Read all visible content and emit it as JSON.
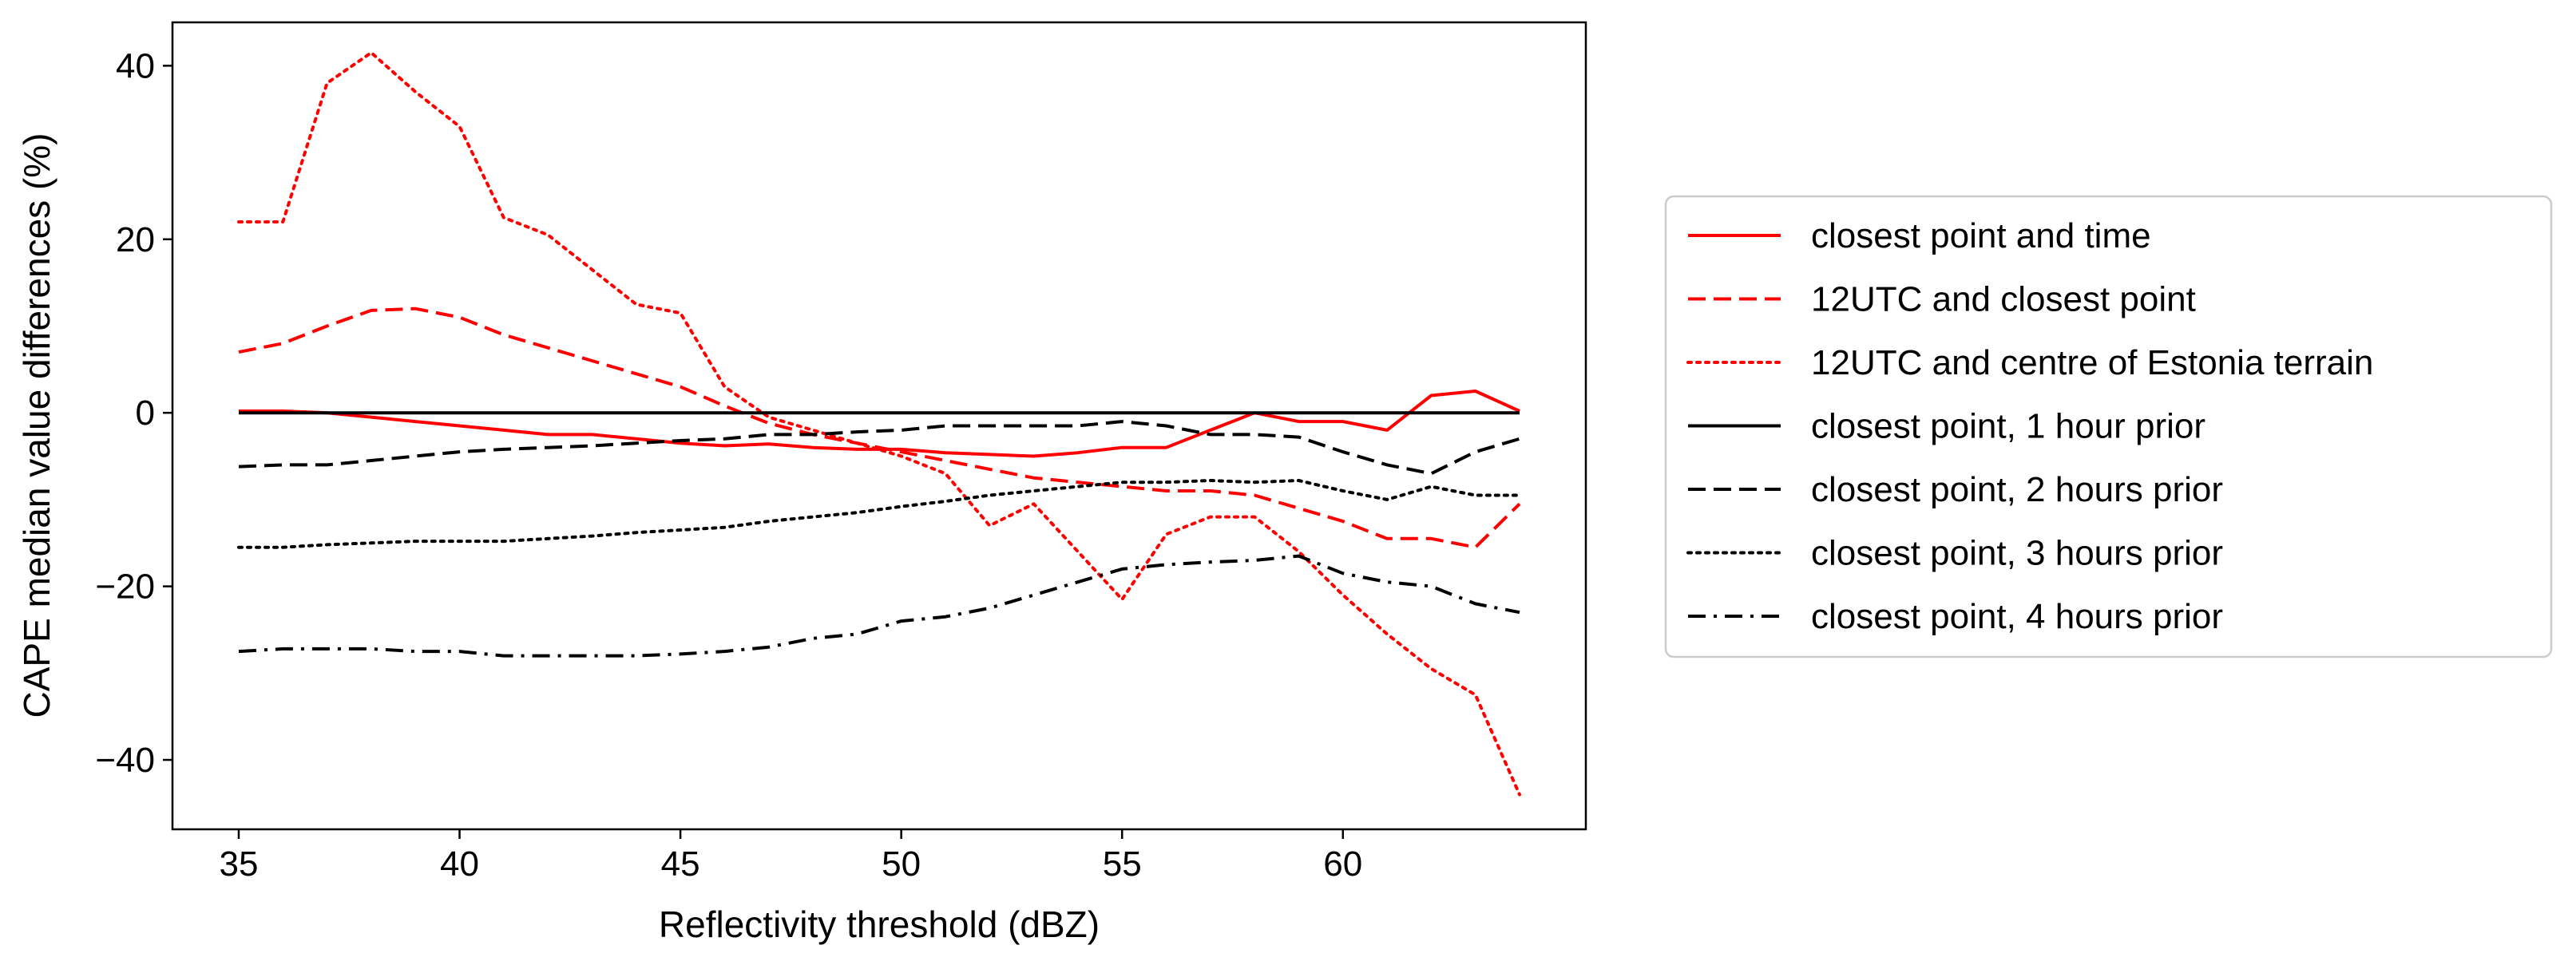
{
  "chart_data": {
    "type": "line",
    "title": "",
    "xlabel": "Reflectivity threshold (dBZ)",
    "ylabel": "CAPE median value differences (%)",
    "xlim": [
      33.5,
      65.5
    ],
    "ylim": [
      -48,
      45
    ],
    "xticks": [
      35,
      40,
      45,
      50,
      55,
      60
    ],
    "yticks": [
      -40,
      -20,
      0,
      20,
      40
    ],
    "ytick_labels": [
      "−40",
      "−20",
      "0",
      "20",
      "40"
    ],
    "grid": false,
    "legend_position": "right",
    "x": [
      35,
      36,
      37,
      38,
      39,
      40,
      41,
      42,
      43,
      44,
      45,
      46,
      47,
      48,
      49,
      50,
      51,
      52,
      53,
      54,
      55,
      56,
      57,
      58,
      59,
      60,
      61,
      62,
      63,
      64
    ],
    "series": [
      {
        "name": "closest point and time",
        "color": "#ff0000",
        "style": "solid",
        "values": [
          0.2,
          0.2,
          0,
          -0.5,
          -1,
          -1.5,
          -2,
          -2.5,
          -2.5,
          -3,
          -3.5,
          -3.8,
          -3.6,
          -4,
          -4.2,
          -4.2,
          -4.6,
          -4.8,
          -5,
          -4.6,
          -4,
          -4,
          -2,
          0,
          -1,
          -1,
          -2,
          2,
          2.5,
          0.2
        ]
      },
      {
        "name": "12UTC and closest point",
        "color": "#ff0000",
        "style": "dashed",
        "values": [
          7,
          8,
          10,
          11.8,
          12,
          11,
          9,
          7.5,
          6,
          4.5,
          3,
          0.8,
          -1.2,
          -2.5,
          -3.5,
          -4.5,
          -5.5,
          -6.5,
          -7.5,
          -8,
          -8.5,
          -9,
          -9,
          -9.5,
          -11,
          -12.5,
          -14.5,
          -14.5,
          -15.5,
          -10.5
        ]
      },
      {
        "name": "12UTC and centre of Estonia terrain",
        "color": "#ff0000",
        "style": "dotted",
        "values": [
          22,
          22,
          38,
          41.5,
          37,
          33,
          22.5,
          20.5,
          16.5,
          12.5,
          11.5,
          3,
          -0.5,
          -2,
          -3.5,
          -5,
          -7,
          -13,
          -10.5,
          -16,
          -21.5,
          -14,
          -12,
          -12,
          -16,
          -21,
          -25.5,
          -29.5,
          -32.5,
          -44
        ]
      },
      {
        "name": "closest point, 1 hour prior",
        "color": "#000000",
        "style": "solid",
        "values": [
          0,
          0,
          0,
          0,
          0,
          0,
          0,
          0,
          0,
          0,
          0,
          0,
          0,
          0,
          0,
          0,
          0,
          0,
          0,
          0,
          0,
          0,
          0,
          0,
          0,
          0,
          0,
          0,
          0,
          0
        ]
      },
      {
        "name": "closest point, 2 hours prior",
        "color": "#000000",
        "style": "dashed",
        "values": [
          -6.2,
          -6,
          -6,
          -5.5,
          -5,
          -4.5,
          -4.2,
          -4,
          -3.8,
          -3.5,
          -3.2,
          -3,
          -2.5,
          -2.5,
          -2.2,
          -2,
          -1.5,
          -1.5,
          -1.5,
          -1.5,
          -1,
          -1.5,
          -2.5,
          -2.5,
          -2.8,
          -4.5,
          -6,
          -7,
          -4.5,
          -3
        ]
      },
      {
        "name": "closest point, 3 hours prior",
        "color": "#000000",
        "style": "dotted",
        "values": [
          -15.5,
          -15.5,
          -15.2,
          -15,
          -14.8,
          -14.8,
          -14.8,
          -14.5,
          -14.2,
          -13.8,
          -13.5,
          -13.2,
          -12.5,
          -12,
          -11.5,
          -10.8,
          -10.2,
          -9.5,
          -9,
          -8.5,
          -8,
          -8,
          -7.8,
          -8,
          -7.8,
          -9,
          -10,
          -8.5,
          -9.5,
          -9.5
        ]
      },
      {
        "name": "closest point, 4 hours prior",
        "color": "#000000",
        "style": "dashdot",
        "values": [
          -27.5,
          -27.2,
          -27.2,
          -27.2,
          -27.5,
          -27.5,
          -28,
          -28,
          -28,
          -28,
          -27.8,
          -27.5,
          -27,
          -26,
          -25.5,
          -24,
          -23.5,
          -22.5,
          -21,
          -19.5,
          -18,
          -17.5,
          -17.2,
          -17,
          -16.5,
          -18.5,
          -19.5,
          -20,
          -22,
          -23
        ]
      }
    ]
  }
}
